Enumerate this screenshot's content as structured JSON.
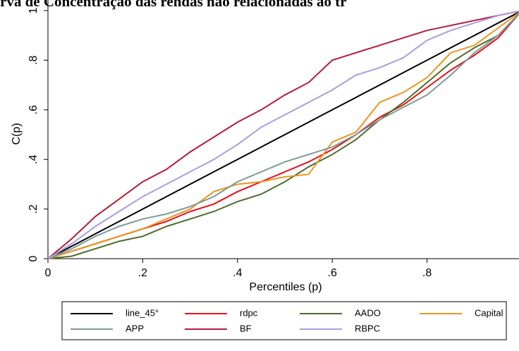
{
  "chart_data": {
    "type": "line",
    "title": "rva de Concentração das rendas não relacionadas ao tr",
    "x_label": "Percentiles (p)",
    "y_label": "C(p)",
    "x": [
      0,
      0.05,
      0.1,
      0.15,
      0.2,
      0.25,
      0.3,
      0.35,
      0.4,
      0.45,
      0.5,
      0.55,
      0.6,
      0.65,
      0.7,
      0.75,
      0.8,
      0.85,
      0.9,
      0.95,
      1
    ],
    "series": [
      {
        "name": "line_45°",
        "color": "#000000",
        "values": [
          0,
          0.05,
          0.1,
          0.15,
          0.2,
          0.25,
          0.3,
          0.35,
          0.4,
          0.45,
          0.5,
          0.55,
          0.6,
          0.65,
          0.7,
          0.75,
          0.8,
          0.85,
          0.9,
          0.95,
          1
        ]
      },
      {
        "name": "rdpc",
        "color": "#e3121b",
        "values": [
          0,
          0.03,
          0.06,
          0.09,
          0.12,
          0.15,
          0.19,
          0.22,
          0.27,
          0.31,
          0.35,
          0.39,
          0.44,
          0.5,
          0.57,
          0.62,
          0.69,
          0.76,
          0.82,
          0.89,
          1
        ]
      },
      {
        "name": "AADO",
        "color": "#4f6b2a",
        "values": [
          0,
          0.01,
          0.04,
          0.07,
          0.09,
          0.13,
          0.16,
          0.19,
          0.23,
          0.26,
          0.31,
          0.37,
          0.42,
          0.48,
          0.56,
          0.63,
          0.71,
          0.79,
          0.85,
          0.9,
          1
        ]
      },
      {
        "name": "Capital",
        "color": "#e8961e",
        "values": [
          0,
          0.03,
          0.06,
          0.09,
          0.12,
          0.16,
          0.2,
          0.27,
          0.3,
          0.31,
          0.33,
          0.34,
          0.47,
          0.51,
          0.63,
          0.67,
          0.73,
          0.83,
          0.86,
          0.93,
          1
        ]
      },
      {
        "name": "APP",
        "color": "#7c9c98",
        "values": [
          0,
          0.04,
          0.09,
          0.13,
          0.16,
          0.18,
          0.21,
          0.25,
          0.31,
          0.35,
          0.39,
          0.42,
          0.45,
          0.5,
          0.56,
          0.61,
          0.66,
          0.74,
          0.83,
          0.9,
          1
        ]
      },
      {
        "name": "BF",
        "color": "#b01e3a",
        "values": [
          0,
          0.08,
          0.17,
          0.24,
          0.31,
          0.36,
          0.43,
          0.49,
          0.55,
          0.6,
          0.66,
          0.71,
          0.8,
          0.83,
          0.86,
          0.89,
          0.92,
          0.94,
          0.96,
          0.98,
          1
        ]
      },
      {
        "name": "RBPC",
        "color": "#a89ee0",
        "values": [
          0,
          0.06,
          0.13,
          0.19,
          0.25,
          0.3,
          0.35,
          0.4,
          0.46,
          0.53,
          0.58,
          0.63,
          0.68,
          0.74,
          0.77,
          0.81,
          0.88,
          0.92,
          0.95,
          0.98,
          1
        ]
      }
    ],
    "xlim": [
      0,
      1
    ],
    "xticks": [
      0,
      {
        "value": 0.2,
        "label": ".2"
      },
      {
        "value": 0.4,
        "label": ".4"
      },
      {
        "value": 0.6,
        "label": ".6"
      },
      {
        "value": 0.8,
        "label": ".8"
      }
    ],
    "ylim": [
      0,
      1
    ],
    "yticks": [
      0,
      {
        "value": 0.2,
        "label": ".2"
      },
      {
        "value": 0.4,
        "label": ".4"
      },
      {
        "value": 0.6,
        "label": ".6"
      },
      {
        "value": 0.8,
        "label": ".8"
      },
      1
    ],
    "legend": "bottom"
  }
}
